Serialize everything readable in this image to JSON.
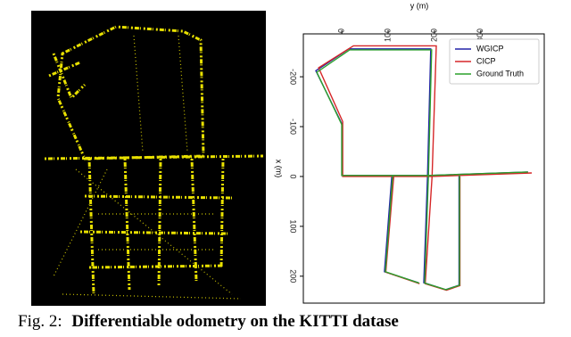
{
  "chart_data": {
    "type": "line",
    "xlabel": "y (m)",
    "ylabel": "x (m)",
    "xlim": [
      -83,
      437
    ],
    "ylim": [
      -286,
      254
    ],
    "xticks": [
      0,
      100,
      200,
      300
    ],
    "yticks": [
      -200,
      -100,
      0,
      100,
      200
    ],
    "legend": "upper right",
    "series": [
      {
        "name": "WGICP",
        "color": "#2424a8",
        "x": [
          402,
          187,
          0,
          0,
          -56,
          15,
          192,
          185,
          177,
          224,
          253,
          253,
          null,
          108,
          92,
          165
        ],
        "values": [
          -9,
          -2,
          -2,
          -106,
          -212,
          -256,
          -256,
          -2,
          213,
          227,
          218,
          -2,
          null,
          -2,
          191,
          213
        ]
      },
      {
        "name": "CICP",
        "color": "#d62728",
        "x": [
          410,
          195,
          2,
          2,
          -50,
          25,
          204,
          195,
          180,
          226,
          255,
          255,
          null,
          112,
          95,
          168
        ],
        "values": [
          -7,
          0,
          0,
          -110,
          -218,
          -262,
          -262,
          0,
          215,
          228,
          219,
          0,
          null,
          0,
          192,
          215
        ]
      },
      {
        "name": "Ground Truth",
        "color": "#2ca02c",
        "x": [
          402,
          187,
          0,
          0,
          -54,
          17,
          194,
          187,
          179,
          225,
          254,
          254,
          null,
          110,
          94,
          167
        ],
        "values": [
          -9,
          -2,
          -2,
          -104,
          -209,
          -254,
          -254,
          -2,
          214,
          227,
          218,
          -2,
          null,
          -2,
          191,
          214
        ]
      }
    ]
  },
  "caption": {
    "label": "Fig. 2:",
    "text": "Differentiable odometry on the KITTI datase"
  }
}
